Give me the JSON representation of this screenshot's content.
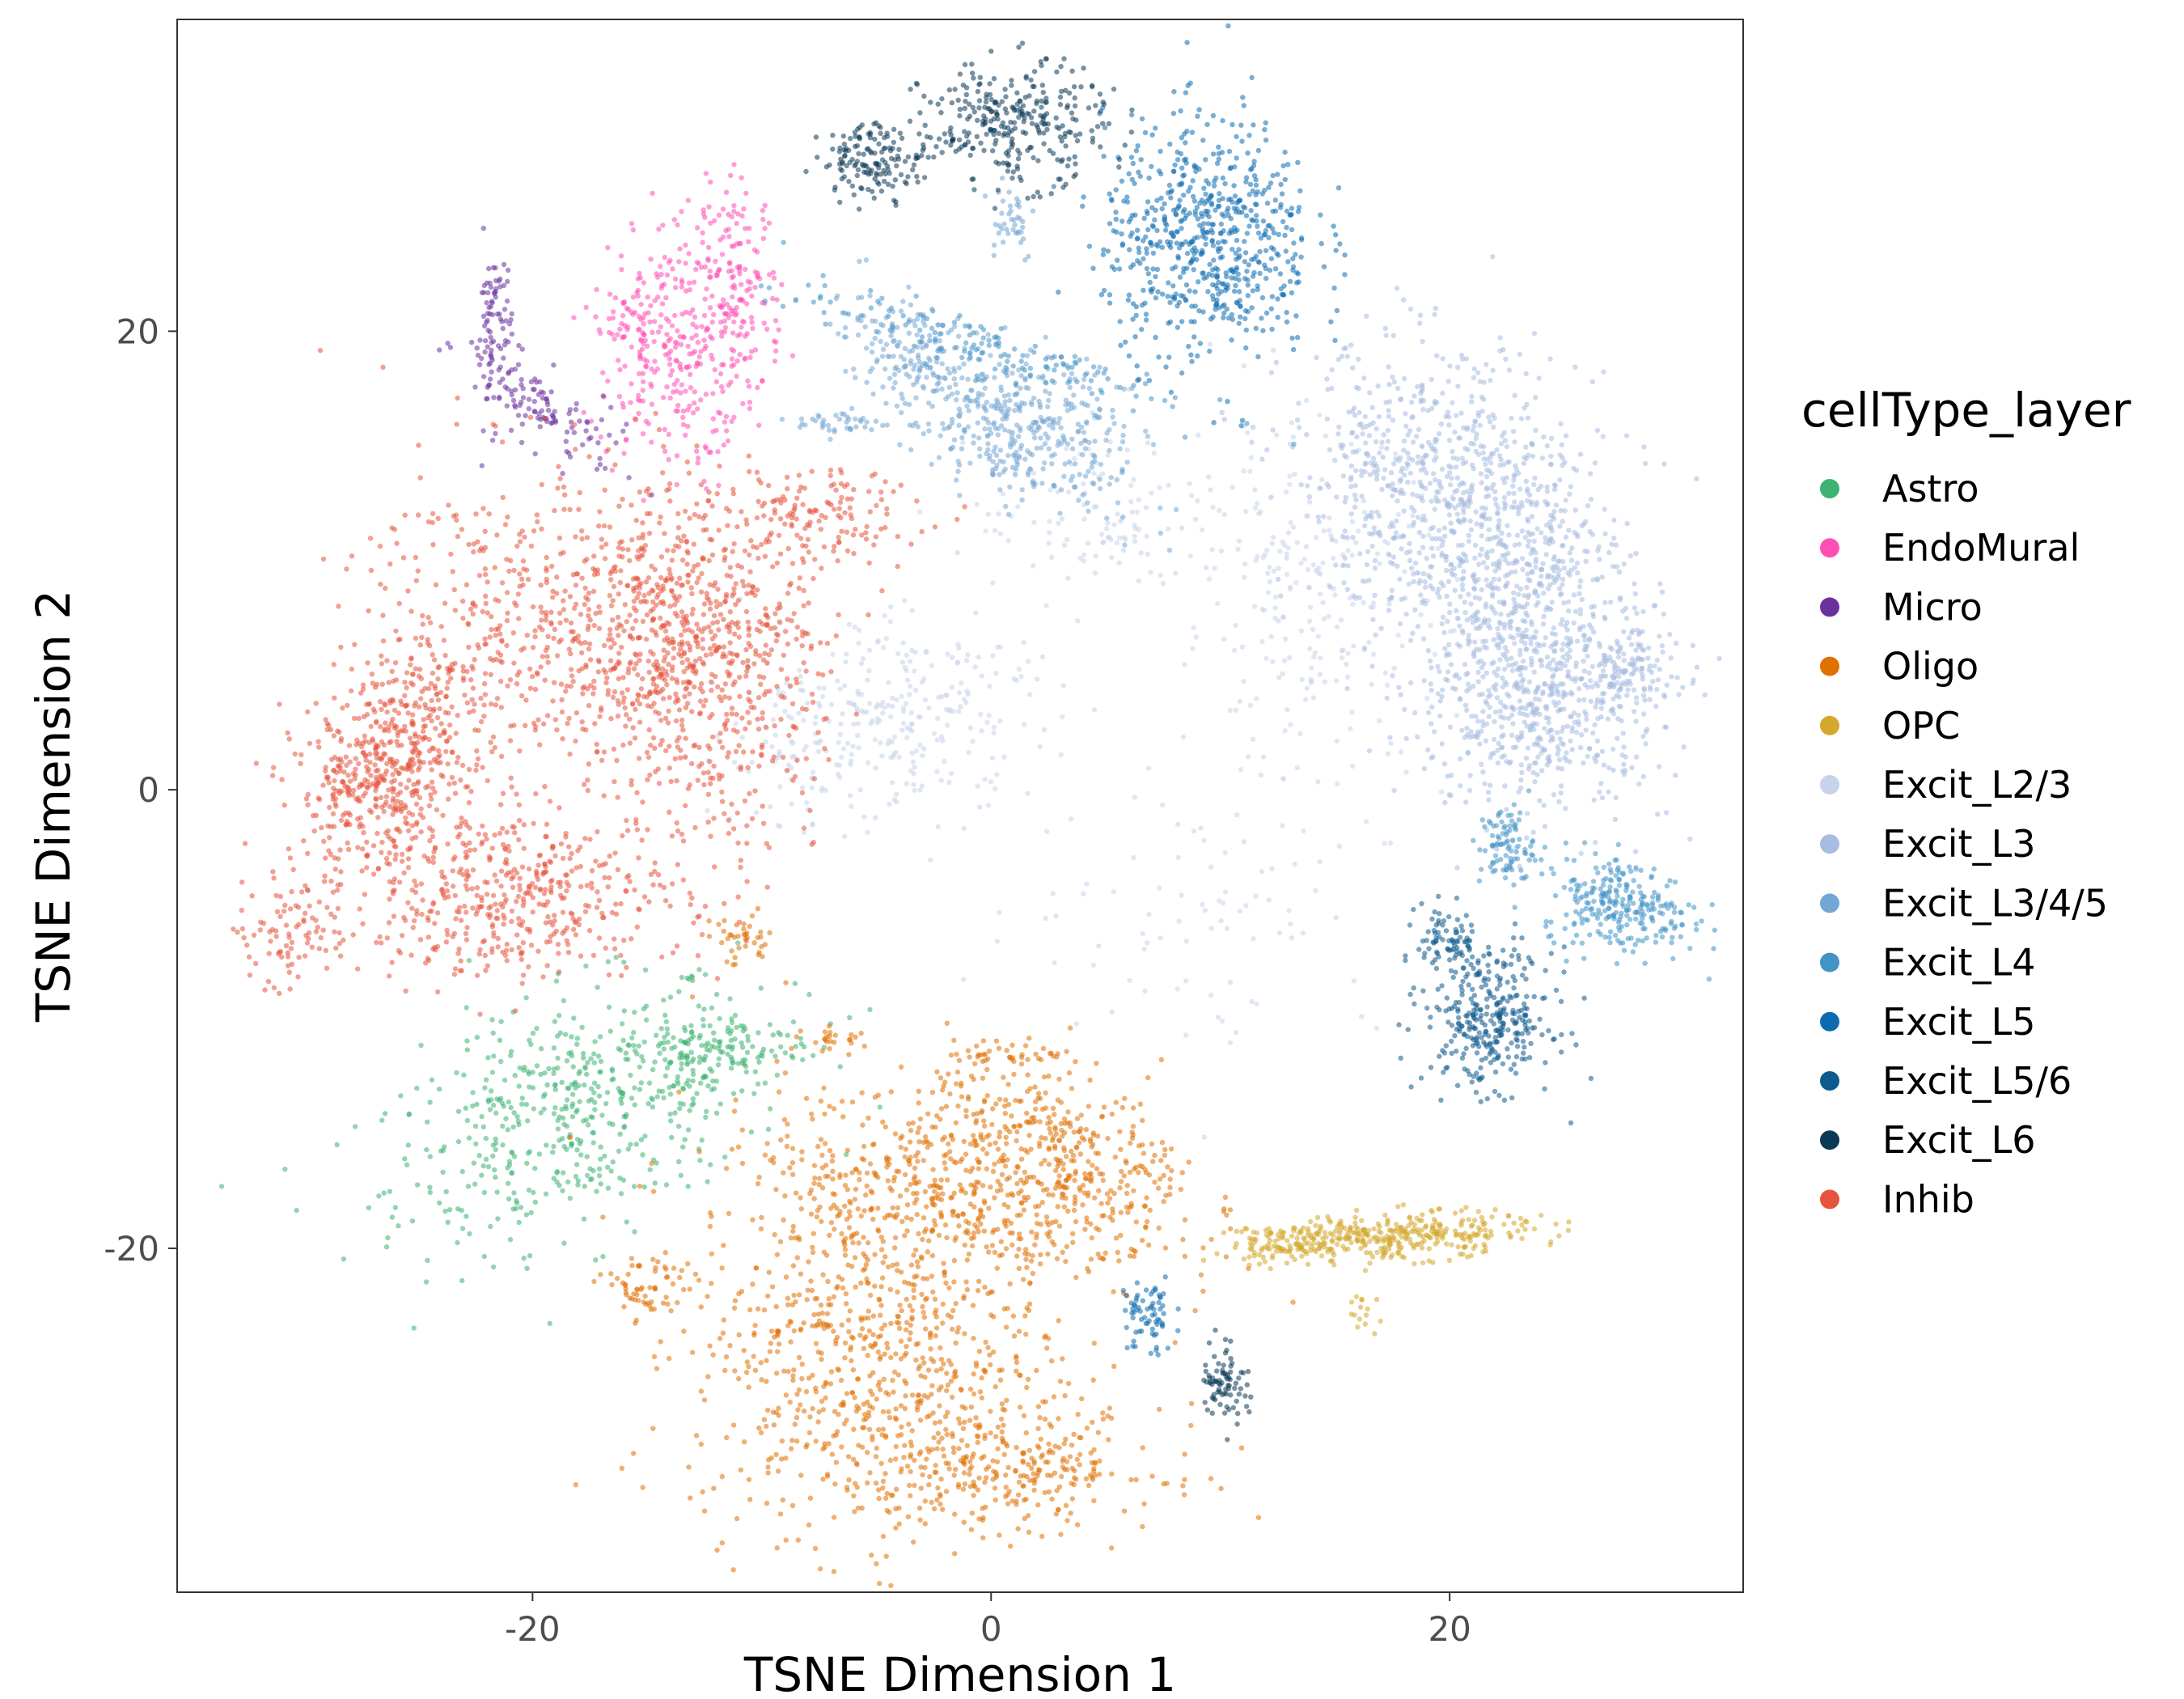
{
  "chart_data": {
    "type": "scatter",
    "title": "",
    "xlabel": "TSNE Dimension 1",
    "ylabel": "TSNE Dimension 2",
    "xlim": [
      -35.5,
      32.8
    ],
    "ylim": [
      -35,
      33.6
    ],
    "xticks": [
      -20,
      0,
      20
    ],
    "yticks": [
      -20,
      0,
      20
    ],
    "xtick_labels": [
      "-20",
      "0",
      "20"
    ],
    "ytick_labels": [
      "-20",
      "0",
      "20"
    ],
    "grid": false,
    "legend": {
      "title": "cellType_layer",
      "position": "right"
    },
    "series": [
      {
        "name": "Astro",
        "color": "#3CB371",
        "clusters": [
          {
            "cx": -18,
            "cy": -14,
            "sx": 4.5,
            "sy": 2.4,
            "n": 520,
            "rot": 22
          },
          {
            "cx": -12,
            "cy": -11.5,
            "sx": 2.2,
            "sy": 0.9,
            "n": 140,
            "rot": 10
          }
        ]
      },
      {
        "name": "EndoMural",
        "color": "#FF4FB4",
        "clusters": [
          {
            "cx": -13.2,
            "cy": 19.5,
            "sx": 1.6,
            "sy": 3.2,
            "n": 260,
            "rot": -10
          },
          {
            "cx": -15.5,
            "cy": 20,
            "sx": 0.9,
            "sy": 1.5,
            "n": 90,
            "rot": 0
          },
          {
            "cx": -11,
            "cy": 21.5,
            "sx": 0.9,
            "sy": 2.4,
            "n": 120,
            "rot": 0
          }
        ]
      },
      {
        "name": "Micro",
        "color": "#6A329F",
        "clusters": [
          {
            "cx": -21.7,
            "cy": 20,
            "sx": 0.4,
            "sy": 2.0,
            "n": 90,
            "rot": 0
          },
          {
            "cx": -19.5,
            "cy": 16.5,
            "sx": 2.0,
            "sy": 0.7,
            "n": 110,
            "rot": -35
          }
        ]
      },
      {
        "name": "Oligo",
        "color": "#E07000",
        "clusters": [
          {
            "cx": -5.5,
            "cy": -24,
            "sx": 3.8,
            "sy": 4.2,
            "n": 800,
            "rot": 0
          },
          {
            "cx": -1,
            "cy": -17.5,
            "sx": 4.5,
            "sy": 1.8,
            "n": 450,
            "rot": -12
          },
          {
            "cx": 3,
            "cy": -15.5,
            "sx": 3.2,
            "sy": 1.5,
            "n": 300,
            "rot": -20
          },
          {
            "cx": 0.5,
            "cy": -29.5,
            "sx": 3.5,
            "sy": 1.3,
            "n": 300,
            "rot": 0
          },
          {
            "cx": -15,
            "cy": -21.8,
            "sx": 1.0,
            "sy": 0.8,
            "n": 60,
            "rot": 0
          },
          {
            "cx": -11,
            "cy": -6.6,
            "sx": 0.8,
            "sy": 0.6,
            "n": 40,
            "rot": 0
          },
          {
            "cx": 1,
            "cy": -11.5,
            "sx": 1.5,
            "sy": 0.3,
            "n": 40,
            "rot": 0
          },
          {
            "cx": -6.5,
            "cy": -11,
            "sx": 0.8,
            "sy": 0.3,
            "n": 25,
            "rot": 0
          }
        ]
      },
      {
        "name": "OPC",
        "color": "#D4A82A",
        "clusters": [
          {
            "cx": 17.5,
            "cy": -19.5,
            "sx": 3.0,
            "sy": 0.5,
            "n": 350,
            "rot": 3
          },
          {
            "cx": 13,
            "cy": -19.8,
            "sx": 1.3,
            "sy": 0.4,
            "n": 80,
            "rot": 0
          },
          {
            "cx": 16.3,
            "cy": -22.8,
            "sx": 0.6,
            "sy": 0.4,
            "n": 15,
            "rot": 0
          }
        ]
      },
      {
        "name": "Excit_L2/3",
        "color": "#C7D3EA",
        "clusters": [
          {
            "cx": -5,
            "cy": 3,
            "sx": 3.5,
            "sy": 2.2,
            "n": 320,
            "rot": 15
          },
          {
            "cx": 14,
            "cy": 8,
            "sx": 3.0,
            "sy": 4.0,
            "n": 250,
            "rot": 0
          },
          {
            "cx": 9,
            "cy": -5,
            "sx": 4.0,
            "sy": 3.0,
            "n": 80,
            "rot": 0
          },
          {
            "cx": 5,
            "cy": 12,
            "sx": 3.0,
            "sy": 2.0,
            "n": 120,
            "rot": 0
          }
        ]
      },
      {
        "name": "Excit_L3",
        "color": "#A6BCE0",
        "clusters": [
          {
            "cx": 18.5,
            "cy": 14,
            "sx": 2.8,
            "sy": 2.8,
            "n": 450,
            "rot": 0
          },
          {
            "cx": 23.5,
            "cy": 9,
            "sx": 2.2,
            "sy": 3.8,
            "n": 500,
            "rot": 0
          },
          {
            "cx": 24,
            "cy": 3.5,
            "sx": 2.8,
            "sy": 2.5,
            "n": 450,
            "rot": 0
          },
          {
            "cx": 27.5,
            "cy": 5,
            "sx": 1.2,
            "sy": 1.0,
            "n": 120,
            "rot": 0
          },
          {
            "cx": 21,
            "cy": 10,
            "sx": 2.0,
            "sy": 2.5,
            "n": 250,
            "rot": 0
          }
        ]
      },
      {
        "name": "Excit_L3/4/5",
        "color": "#74A6D4",
        "clusters": [
          {
            "cx": 1,
            "cy": 16,
            "sx": 2.8,
            "sy": 1.6,
            "n": 450,
            "rot": -25
          },
          {
            "cx": -4,
            "cy": 19.5,
            "sx": 1.4,
            "sy": 1.0,
            "n": 120,
            "rot": -40
          },
          {
            "cx": -6.5,
            "cy": 16,
            "sx": 1.0,
            "sy": 0.3,
            "n": 40,
            "rot": 0
          },
          {
            "cx": 0.8,
            "cy": 25,
            "sx": 0.6,
            "sy": 1.0,
            "n": 40,
            "rot": 0
          }
        ]
      },
      {
        "name": "Excit_L4",
        "color": "#4294C7",
        "clusters": [
          {
            "cx": 27.5,
            "cy": -5,
            "sx": 1.6,
            "sy": 1.0,
            "n": 260,
            "rot": -15
          },
          {
            "cx": 22.5,
            "cy": -2.5,
            "sx": 0.6,
            "sy": 0.9,
            "n": 90,
            "rot": 0
          },
          {
            "cx": -1,
            "cy": 19.5,
            "sx": 4.5,
            "sy": 0.6,
            "n": 150,
            "rot": -15
          }
        ]
      },
      {
        "name": "Excit_L5",
        "color": "#0C6BB0",
        "clusters": [
          {
            "cx": 9.5,
            "cy": 24,
            "sx": 2.3,
            "sy": 2.6,
            "n": 650,
            "rot": 0
          },
          {
            "cx": 6.8,
            "cy": -23,
            "sx": 0.6,
            "sy": 0.9,
            "n": 70,
            "rot": 0
          }
        ]
      },
      {
        "name": "Excit_L5/6",
        "color": "#0D5A8C",
        "clusters": [
          {
            "cx": 21.7,
            "cy": -10,
            "sx": 1.4,
            "sy": 1.5,
            "n": 320,
            "rot": 0
          },
          {
            "cx": 20,
            "cy": -6.5,
            "sx": 0.7,
            "sy": 0.8,
            "n": 80,
            "rot": 0
          }
        ]
      },
      {
        "name": "Excit_L6",
        "color": "#0B3857",
        "clusters": [
          {
            "cx": 1,
            "cy": 29,
            "sx": 2.0,
            "sy": 1.3,
            "n": 300,
            "rot": 0
          },
          {
            "cx": -5,
            "cy": 27.5,
            "sx": 1.2,
            "sy": 0.8,
            "n": 150,
            "rot": 0
          },
          {
            "cx": 10.2,
            "cy": -25.7,
            "sx": 0.5,
            "sy": 0.9,
            "n": 80,
            "rot": 0
          }
        ]
      },
      {
        "name": "Inhib",
        "color": "#E6543C",
        "clusters": [
          {
            "cx": -14,
            "cy": 6.5,
            "sx": 3.2,
            "sy": 3.0,
            "n": 750,
            "rot": -20
          },
          {
            "cx": -27,
            "cy": 0,
            "sx": 1.7,
            "sy": 1.5,
            "n": 300,
            "rot": 0
          },
          {
            "cx": -21,
            "cy": -4.5,
            "sx": 3.8,
            "sy": 1.8,
            "n": 500,
            "rot": 0
          },
          {
            "cx": -21,
            "cy": 8,
            "sx": 3.5,
            "sy": 3.5,
            "n": 300,
            "rot": 0
          },
          {
            "cx": -25,
            "cy": 3,
            "sx": 2.0,
            "sy": 2.0,
            "n": 250,
            "rot": 0
          },
          {
            "cx": -8,
            "cy": 12,
            "sx": 2.5,
            "sy": 1.0,
            "n": 150,
            "rot": 0
          },
          {
            "cx": -30.5,
            "cy": -6,
            "sx": 1.0,
            "sy": 1.3,
            "n": 90,
            "rot": -30
          },
          {
            "cx": -11,
            "cy": 3,
            "sx": 2.0,
            "sy": 4.0,
            "n": 150,
            "rot": 0
          }
        ]
      }
    ]
  }
}
